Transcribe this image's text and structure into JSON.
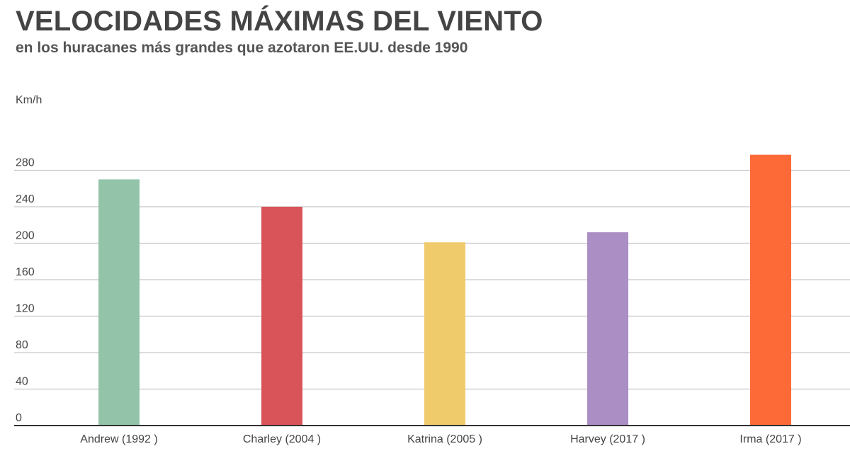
{
  "title": "VELOCIDADES MÁXIMAS DEL VIENTO",
  "subtitle": "en los huracanes más grandes que azotaron EE.UU. desde 1990",
  "chart_data": {
    "type": "bar",
    "title": "VELOCIDADES MÁXIMAS DEL VIENTO",
    "subtitle": "en los huracanes más grandes que azotaron EE.UU. desde 1990",
    "ylabel": "Km/h",
    "xlabel": "",
    "categories": [
      "Andrew (1992 )",
      "Charley (2004 )",
      "Katrina (2005 )",
      "Harvey (2017 )",
      "Irma (2017 )"
    ],
    "values": [
      270,
      240,
      201,
      212,
      297
    ],
    "colors": [
      "#93c4a9",
      "#d95459",
      "#f0cb6c",
      "#ab8fc4",
      "#fe6938"
    ],
    "yticks": [
      "0",
      "40",
      "80",
      "120",
      "160",
      "200",
      "240",
      "280"
    ],
    "ylim": [
      0,
      280
    ],
    "grid": true,
    "legend": "none"
  }
}
